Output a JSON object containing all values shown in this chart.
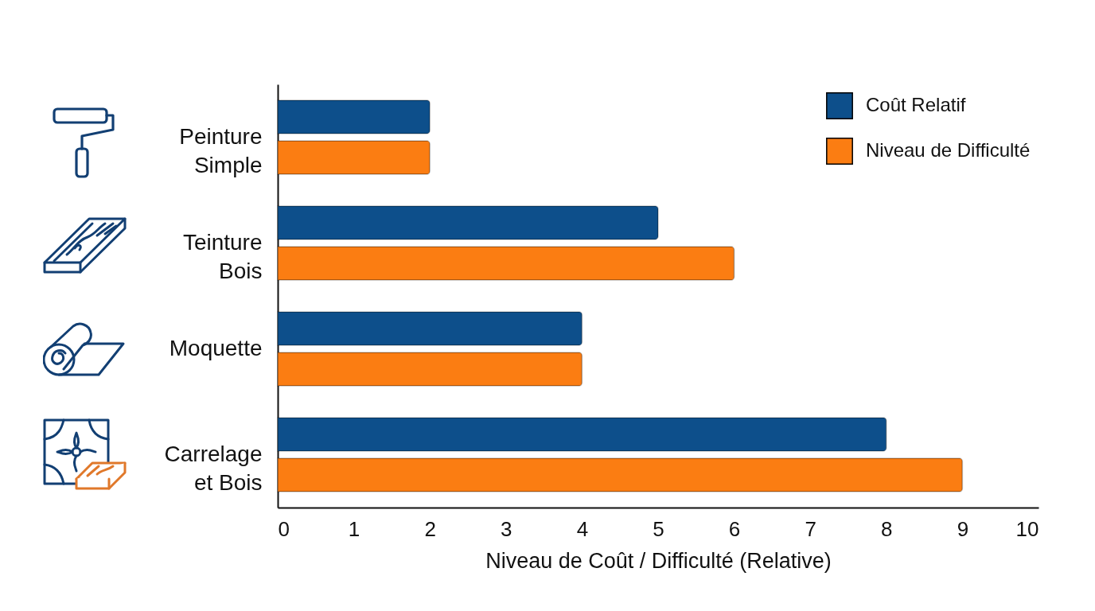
{
  "chart_data": {
    "type": "bar",
    "orientation": "horizontal",
    "xlabel": "Niveau de Coût / Difficulté (Relative)",
    "categories": [
      "Peinture Simple",
      "Teinture Bois",
      "Moquette",
      "Carrelage et Bois"
    ],
    "series": [
      {
        "name": "Coût Relatif",
        "color": "#0d4f8b",
        "values": [
          2,
          5,
          4,
          8
        ]
      },
      {
        "name": "Niveau de Difficulté",
        "color": "#fb7d12",
        "values": [
          2,
          6,
          4,
          9
        ]
      }
    ],
    "xlim": [
      0,
      10
    ],
    "xticks": [
      0,
      1,
      2,
      3,
      4,
      5,
      6,
      7,
      8,
      9,
      10
    ],
    "legend": "top right"
  }
}
